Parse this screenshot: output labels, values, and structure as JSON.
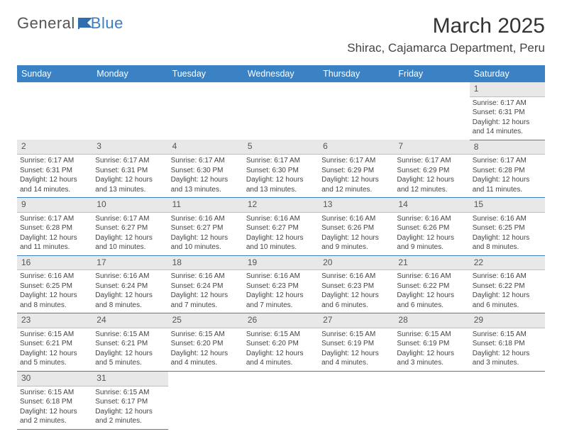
{
  "logo": {
    "general": "General",
    "blue": "Blue"
  },
  "title": "March 2025",
  "location": "Shirac, Cajamarca Department, Peru",
  "colors": {
    "header_bg": "#3a82c4",
    "header_text": "#ffffff",
    "daynum_bg": "#e8e8e8",
    "border": "#3a82c4",
    "text": "#444444",
    "logo_blue": "#3a7fbf"
  },
  "days_of_week": [
    "Sunday",
    "Monday",
    "Tuesday",
    "Wednesday",
    "Thursday",
    "Friday",
    "Saturday"
  ],
  "weeks": [
    [
      null,
      null,
      null,
      null,
      null,
      null,
      {
        "n": "1",
        "sr": "6:17 AM",
        "ss": "6:31 PM",
        "dl": "12 hours and 14 minutes."
      }
    ],
    [
      {
        "n": "2",
        "sr": "6:17 AM",
        "ss": "6:31 PM",
        "dl": "12 hours and 14 minutes."
      },
      {
        "n": "3",
        "sr": "6:17 AM",
        "ss": "6:31 PM",
        "dl": "12 hours and 13 minutes."
      },
      {
        "n": "4",
        "sr": "6:17 AM",
        "ss": "6:30 PM",
        "dl": "12 hours and 13 minutes."
      },
      {
        "n": "5",
        "sr": "6:17 AM",
        "ss": "6:30 PM",
        "dl": "12 hours and 13 minutes."
      },
      {
        "n": "6",
        "sr": "6:17 AM",
        "ss": "6:29 PM",
        "dl": "12 hours and 12 minutes."
      },
      {
        "n": "7",
        "sr": "6:17 AM",
        "ss": "6:29 PM",
        "dl": "12 hours and 12 minutes."
      },
      {
        "n": "8",
        "sr": "6:17 AM",
        "ss": "6:28 PM",
        "dl": "12 hours and 11 minutes."
      }
    ],
    [
      {
        "n": "9",
        "sr": "6:17 AM",
        "ss": "6:28 PM",
        "dl": "12 hours and 11 minutes."
      },
      {
        "n": "10",
        "sr": "6:17 AM",
        "ss": "6:27 PM",
        "dl": "12 hours and 10 minutes."
      },
      {
        "n": "11",
        "sr": "6:16 AM",
        "ss": "6:27 PM",
        "dl": "12 hours and 10 minutes."
      },
      {
        "n": "12",
        "sr": "6:16 AM",
        "ss": "6:27 PM",
        "dl": "12 hours and 10 minutes."
      },
      {
        "n": "13",
        "sr": "6:16 AM",
        "ss": "6:26 PM",
        "dl": "12 hours and 9 minutes."
      },
      {
        "n": "14",
        "sr": "6:16 AM",
        "ss": "6:26 PM",
        "dl": "12 hours and 9 minutes."
      },
      {
        "n": "15",
        "sr": "6:16 AM",
        "ss": "6:25 PM",
        "dl": "12 hours and 8 minutes."
      }
    ],
    [
      {
        "n": "16",
        "sr": "6:16 AM",
        "ss": "6:25 PM",
        "dl": "12 hours and 8 minutes."
      },
      {
        "n": "17",
        "sr": "6:16 AM",
        "ss": "6:24 PM",
        "dl": "12 hours and 8 minutes."
      },
      {
        "n": "18",
        "sr": "6:16 AM",
        "ss": "6:24 PM",
        "dl": "12 hours and 7 minutes."
      },
      {
        "n": "19",
        "sr": "6:16 AM",
        "ss": "6:23 PM",
        "dl": "12 hours and 7 minutes."
      },
      {
        "n": "20",
        "sr": "6:16 AM",
        "ss": "6:23 PM",
        "dl": "12 hours and 6 minutes."
      },
      {
        "n": "21",
        "sr": "6:16 AM",
        "ss": "6:22 PM",
        "dl": "12 hours and 6 minutes."
      },
      {
        "n": "22",
        "sr": "6:16 AM",
        "ss": "6:22 PM",
        "dl": "12 hours and 6 minutes."
      }
    ],
    [
      {
        "n": "23",
        "sr": "6:15 AM",
        "ss": "6:21 PM",
        "dl": "12 hours and 5 minutes."
      },
      {
        "n": "24",
        "sr": "6:15 AM",
        "ss": "6:21 PM",
        "dl": "12 hours and 5 minutes."
      },
      {
        "n": "25",
        "sr": "6:15 AM",
        "ss": "6:20 PM",
        "dl": "12 hours and 4 minutes."
      },
      {
        "n": "26",
        "sr": "6:15 AM",
        "ss": "6:20 PM",
        "dl": "12 hours and 4 minutes."
      },
      {
        "n": "27",
        "sr": "6:15 AM",
        "ss": "6:19 PM",
        "dl": "12 hours and 4 minutes."
      },
      {
        "n": "28",
        "sr": "6:15 AM",
        "ss": "6:19 PM",
        "dl": "12 hours and 3 minutes."
      },
      {
        "n": "29",
        "sr": "6:15 AM",
        "ss": "6:18 PM",
        "dl": "12 hours and 3 minutes."
      }
    ],
    [
      {
        "n": "30",
        "sr": "6:15 AM",
        "ss": "6:18 PM",
        "dl": "12 hours and 2 minutes."
      },
      {
        "n": "31",
        "sr": "6:15 AM",
        "ss": "6:17 PM",
        "dl": "12 hours and 2 minutes."
      },
      null,
      null,
      null,
      null,
      null
    ]
  ],
  "labels": {
    "sunrise": "Sunrise:",
    "sunset": "Sunset:",
    "daylight": "Daylight:"
  }
}
